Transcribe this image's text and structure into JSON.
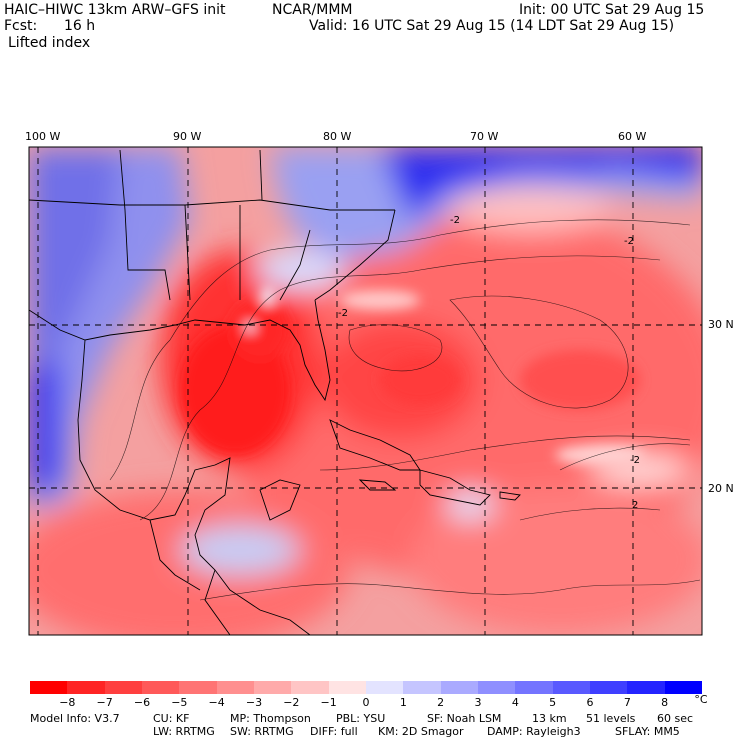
{
  "header": {
    "model_line": "HAIC–HIWC 13km ARW–GFS init",
    "org": "NCAR/MMM",
    "init": "Init: 00 UTC Sat 29 Aug 15",
    "fcst_label": "Fcst:",
    "fcst_value": "16 h",
    "valid": "Valid: 16 UTC Sat 29 Aug 15 (14 LDT Sat 29 Aug 15)",
    "field": "Lifted index"
  },
  "map": {
    "lon_labels": [
      "100 W",
      "90 W",
      "80 W",
      "70 W",
      "60 W"
    ],
    "lat_labels": [
      "30 N",
      "20 N"
    ],
    "contour_labels": [
      "-2",
      "-2",
      "-2",
      "-2",
      "2"
    ],
    "colors": {
      "warm_core": "#ff2a2a",
      "warm": "#ff7a7a",
      "neutral": "#ffffff",
      "cool": "#8a8cf0",
      "cold": "#1c1cf0"
    }
  },
  "colorbar": {
    "unit": "°C",
    "ticks": [
      "−8",
      "−7",
      "−6",
      "−5",
      "−4",
      "−3",
      "−2",
      "−1",
      "0",
      "1",
      "2",
      "3",
      "4",
      "5",
      "6",
      "7",
      "8"
    ],
    "colors": [
      "#ff0000",
      "#ff2424",
      "#ff3f3f",
      "#ff5959",
      "#ff7474",
      "#ff8f8f",
      "#ffaaaa",
      "#ffc5c5",
      "#ffe3e3",
      "#e3e3ff",
      "#c5c5ff",
      "#aaaaff",
      "#8f8fff",
      "#7474ff",
      "#5959ff",
      "#3f3fff",
      "#2424ff",
      "#0000ff"
    ]
  },
  "footer": {
    "line1": [
      "Model Info: V3.7",
      "CU: KF",
      "MP: Thompson",
      "PBL: YSU",
      "SF: Noah LSM",
      "13 km",
      "51 levels",
      "60 sec"
    ],
    "line2": [
      "LW: RRTMG",
      "SW: RRTMG",
      "DIFF: full",
      "KM: 2D Smagor",
      "DAMP: Rayleigh3",
      "SFLAY: MM5"
    ]
  }
}
